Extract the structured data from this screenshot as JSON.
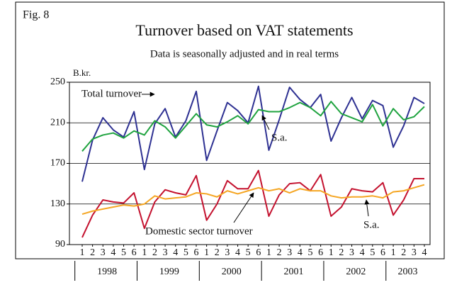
{
  "chart_data": {
    "type": "line",
    "figure_label": "Fig. 8",
    "title": "Turnover based on VAT statements",
    "subtitle": "Data is seasonally adjusted and in real terms",
    "y_label": "B.kr.",
    "categories": [
      "1",
      "2",
      "3",
      "4",
      "5",
      "6",
      "1",
      "2",
      "3",
      "4",
      "5",
      "6",
      "1",
      "2",
      "3",
      "4",
      "5",
      "6",
      "1",
      "2",
      "3",
      "4",
      "5",
      "6",
      "1",
      "2",
      "3",
      "4",
      "5",
      "6",
      "1",
      "2",
      "3",
      "4"
    ],
    "year_groups": [
      {
        "label": "1998",
        "count": 6
      },
      {
        "label": "1999",
        "count": 6
      },
      {
        "label": "2000",
        "count": 6
      },
      {
        "label": "2001",
        "count": 6
      },
      {
        "label": "2002",
        "count": 6
      },
      {
        "label": "2003",
        "count": 4
      }
    ],
    "series": [
      {
        "name": "Total turnover",
        "color": "#2e3192",
        "values": [
          152,
          193,
          215,
          203,
          196,
          221,
          164,
          209,
          224,
          196,
          212,
          241,
          173,
          202,
          230,
          222,
          210,
          246,
          183,
          213,
          245,
          233,
          225,
          238,
          192,
          215,
          235,
          214,
          232,
          227,
          186,
          207,
          235,
          229
        ]
      },
      {
        "name": "S.a.",
        "color": "#1fa33f",
        "values": [
          182,
          194,
          198,
          200,
          195,
          202,
          198,
          212,
          206,
          195,
          207,
          219,
          208,
          206,
          211,
          217,
          209,
          223,
          221,
          221,
          225,
          230,
          225,
          217,
          231,
          219,
          215,
          211,
          228,
          207,
          224,
          213,
          216,
          226
        ]
      },
      {
        "name": "Domestic sector turnover",
        "color": "#c4122f",
        "values": [
          97,
          119,
          134,
          132,
          131,
          141,
          106,
          132,
          144,
          141,
          139,
          158,
          114,
          130,
          153,
          145,
          145,
          163,
          118,
          139,
          150,
          151,
          143,
          159,
          118,
          127,
          145,
          143,
          142,
          151,
          119,
          134,
          155,
          155
        ]
      },
      {
        "name": "S.a.",
        "color": "#f5a623",
        "values": [
          120,
          123,
          125,
          127,
          129,
          128,
          130,
          138,
          135,
          136,
          137,
          141,
          140,
          137,
          143,
          140,
          143,
          146,
          143,
          145,
          141,
          145,
          143,
          143,
          138,
          136,
          137,
          137,
          138,
          136,
          142,
          143,
          146,
          149
        ]
      }
    ],
    "ylim": [
      90,
      250
    ],
    "yticks": [
      90,
      130,
      170,
      210,
      250
    ],
    "grid": true
  }
}
